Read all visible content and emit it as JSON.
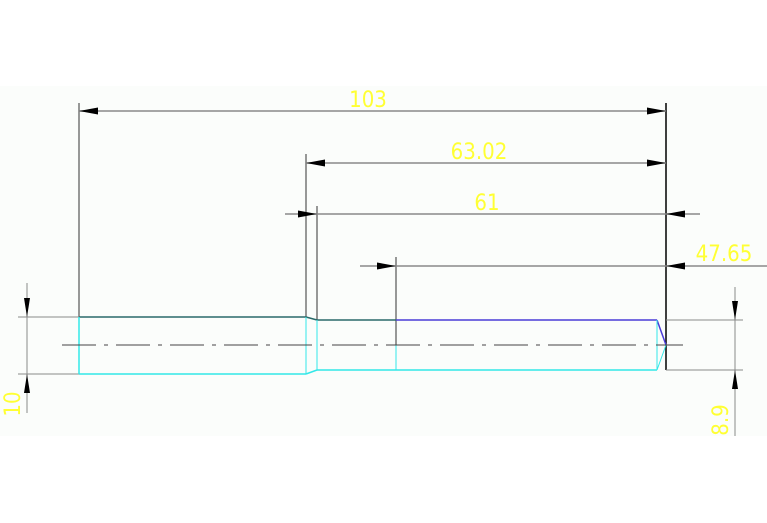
{
  "drawing": {
    "colors": {
      "background": "#fbfdfb",
      "dimension_text": "#ffff33",
      "part_outline": "#33e8e8",
      "edge_highlight": "#4b3cd8",
      "geometry_line": "#333333",
      "dimension_line": "#8a8a8a"
    },
    "dimensions": {
      "overall_length": "103",
      "length_2": "63.02",
      "length_3": "61",
      "length_4": "47.65",
      "left_diameter": "10",
      "right_diameter": "8.9"
    }
  }
}
